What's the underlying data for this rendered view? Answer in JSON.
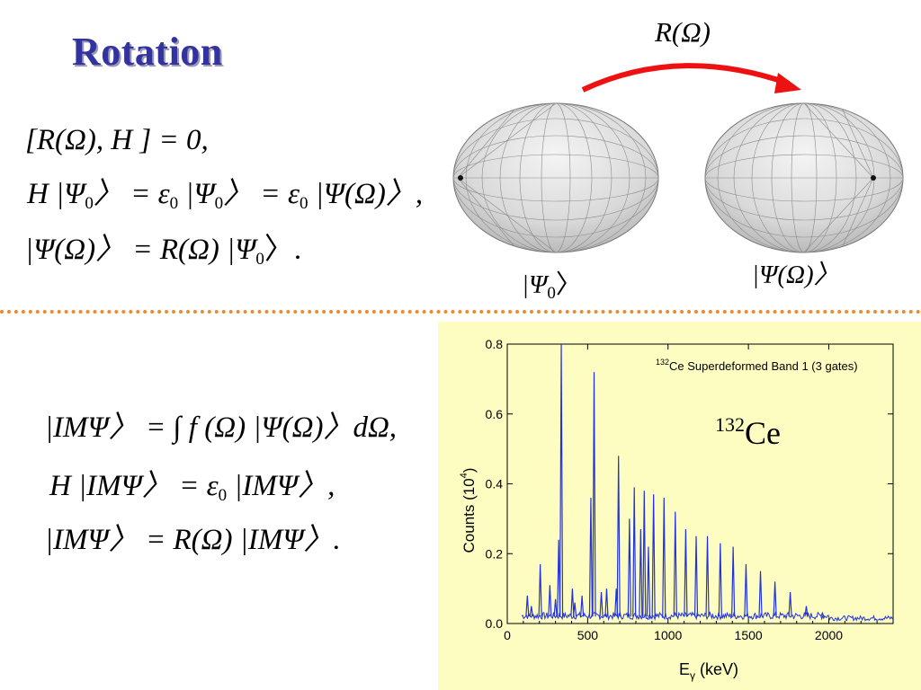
{
  "slide": {
    "title": "Rotation",
    "rotation_label": "R(Ω)",
    "psi0_label": "|Ψ",
    "psi0_sub": "0",
    "psiOmega_label": "|Ψ(Ω)〉",
    "nucleus_mass": "132",
    "nucleus_symbol": "Ce",
    "colors": {
      "title": "#3333a0",
      "arrow": "#ee1111",
      "divider": "#ee8a2a",
      "panel": "#fdfdc2",
      "spectrum": "#2233dd"
    },
    "equations_top": {
      "eq1": "[R(Ω), H ] = 0,",
      "eq2_a": "H |Ψ",
      "eq2_sub1": "0",
      "eq2_b": "〉 = ε",
      "eq2_sub2": "0",
      "eq2_c": " |Ψ",
      "eq2_sub3": "0",
      "eq2_d": "〉 = ε",
      "eq2_sub4": "0",
      "eq2_e": " |Ψ(Ω)〉,",
      "eq3_a": "|Ψ(Ω)〉 = R(Ω) |Ψ",
      "eq3_sub": "0",
      "eq3_b": "〉."
    },
    "equations_bottom": {
      "eq1": "|IMΨ〉 = ∫ f (Ω) |Ψ(Ω)〉dΩ,",
      "eq2_a": "H |IMΨ〉 = ε",
      "eq2_sub": "0",
      "eq2_b": " |IMΨ〉,",
      "eq3": "|IMΨ〉 = R(Ω) |IMΨ〉."
    }
  },
  "chart_data": {
    "type": "line",
    "title": "Ce Superdeformed Band 1 (3 gates)",
    "title_sup": "132",
    "xlabel": "E",
    "xlabel_sub": "γ",
    "xlabel_unit": " (keV)",
    "ylabel": "Counts (10",
    "ylabel_sup": "4",
    "ylabel_end": ")",
    "xlim": [
      0,
      2400
    ],
    "ylim": [
      0,
      0.8
    ],
    "xticks": [
      "0",
      "500",
      "1000",
      "1500",
      "2000"
    ],
    "yticks": [
      "0.0",
      "0.2",
      "0.4",
      "0.6",
      "0.8"
    ],
    "xtick_values": [
      0,
      500,
      1000,
      1500,
      2000
    ],
    "ytick_values": [
      0,
      0.2,
      0.4,
      0.6,
      0.8
    ],
    "peaks": [
      {
        "x": 125,
        "y": 0.08
      },
      {
        "x": 150,
        "y": 0.05
      },
      {
        "x": 205,
        "y": 0.17
      },
      {
        "x": 265,
        "y": 0.11
      },
      {
        "x": 300,
        "y": 0.07
      },
      {
        "x": 320,
        "y": 0.24
      },
      {
        "x": 336,
        "y": 0.8
      },
      {
        "x": 405,
        "y": 0.1
      },
      {
        "x": 420,
        "y": 0.06
      },
      {
        "x": 465,
        "y": 0.08
      },
      {
        "x": 520,
        "y": 0.36
      },
      {
        "x": 540,
        "y": 0.72
      },
      {
        "x": 585,
        "y": 0.09
      },
      {
        "x": 618,
        "y": 0.1
      },
      {
        "x": 678,
        "y": 0.1
      },
      {
        "x": 692,
        "y": 0.48
      },
      {
        "x": 760,
        "y": 0.3
      },
      {
        "x": 790,
        "y": 0.39
      },
      {
        "x": 830,
        "y": 0.27
      },
      {
        "x": 852,
        "y": 0.38
      },
      {
        "x": 878,
        "y": 0.22
      },
      {
        "x": 910,
        "y": 0.37
      },
      {
        "x": 975,
        "y": 0.36
      },
      {
        "x": 1045,
        "y": 0.32
      },
      {
        "x": 1110,
        "y": 0.27
      },
      {
        "x": 1175,
        "y": 0.25
      },
      {
        "x": 1245,
        "y": 0.25
      },
      {
        "x": 1325,
        "y": 0.23
      },
      {
        "x": 1405,
        "y": 0.22
      },
      {
        "x": 1485,
        "y": 0.17
      },
      {
        "x": 1575,
        "y": 0.15
      },
      {
        "x": 1665,
        "y": 0.12
      },
      {
        "x": 1760,
        "y": 0.09
      },
      {
        "x": 1860,
        "y": 0.05
      },
      {
        "x": 1960,
        "y": 0.03
      }
    ],
    "grid": false,
    "legend": "none"
  }
}
